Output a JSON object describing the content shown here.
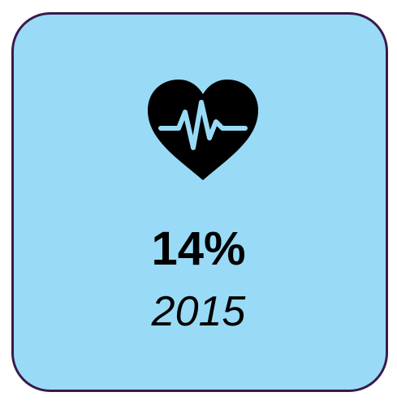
{
  "stat": {
    "value": "14%",
    "year": "2015"
  }
}
